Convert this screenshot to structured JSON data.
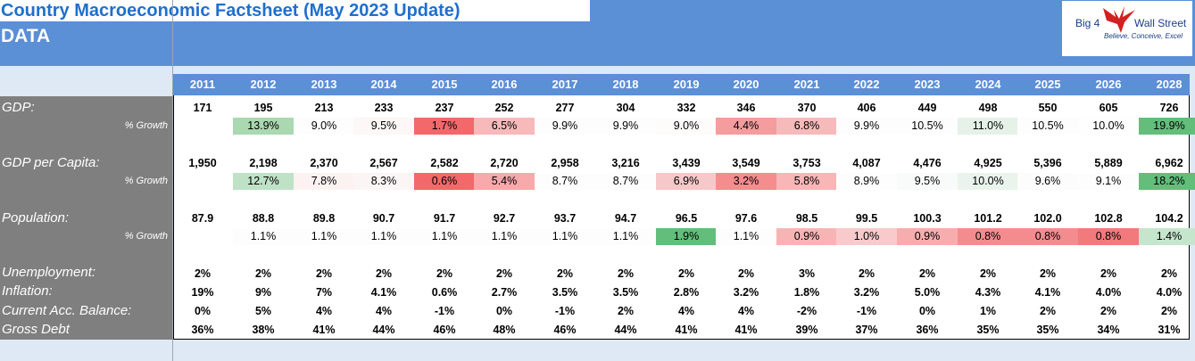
{
  "header": {
    "title": "Country Macroeconomic Factsheet (May 2023 Update)",
    "subtitle": "DATA",
    "logo_left": "Big 4",
    "logo_right": "Wall Street",
    "logo_tagline": "Believe, Conceive, Excel"
  },
  "years": [
    "2011",
    "2012",
    "2013",
    "2014",
    "2015",
    "2016",
    "2017",
    "2018",
    "2019",
    "2020",
    "2021",
    "2022",
    "2023",
    "2024",
    "2025",
    "2026",
    "2028"
  ],
  "labels": {
    "gdp": "GDP:",
    "gdp_pc": "GDP per Capita:",
    "population": "Population:",
    "growth": "% Growth",
    "unemployment": "Unemployment:",
    "inflation": "Inflation:",
    "current_account": "Current Acc. Balance:",
    "gross_debt": "Gross Debt"
  },
  "rows": {
    "gdp": [
      "171",
      "195",
      "213",
      "233",
      "237",
      "252",
      "277",
      "304",
      "332",
      "346",
      "370",
      "406",
      "449",
      "498",
      "550",
      "605",
      "726"
    ],
    "gdp_growth": [
      "",
      "13.9%",
      "9.0%",
      "9.5%",
      "1.7%",
      "6.5%",
      "9.9%",
      "9.9%",
      "9.0%",
      "4.4%",
      "6.8%",
      "9.9%",
      "10.5%",
      "11.0%",
      "10.5%",
      "10.0%",
      "19.9%"
    ],
    "gdp_pc": [
      "1,950",
      "2,198",
      "2,370",
      "2,567",
      "2,582",
      "2,720",
      "2,958",
      "3,216",
      "3,439",
      "3,549",
      "3,753",
      "4,087",
      "4,476",
      "4,925",
      "5,396",
      "5,889",
      "6,962"
    ],
    "gdp_pc_growth": [
      "",
      "12.7%",
      "7.8%",
      "8.3%",
      "0.6%",
      "5.4%",
      "8.7%",
      "8.7%",
      "6.9%",
      "3.2%",
      "5.8%",
      "8.9%",
      "9.5%",
      "10.0%",
      "9.6%",
      "9.1%",
      "18.2%"
    ],
    "population": [
      "87.9",
      "88.8",
      "89.8",
      "90.7",
      "91.7",
      "92.7",
      "93.7",
      "94.7",
      "96.5",
      "97.6",
      "98.5",
      "99.5",
      "100.3",
      "101.2",
      "102.0",
      "102.8",
      "104.2"
    ],
    "population_growth": [
      "",
      "1.1%",
      "1.1%",
      "1.1%",
      "1.1%",
      "1.1%",
      "1.1%",
      "1.1%",
      "1.9%",
      "1.1%",
      "0.9%",
      "1.0%",
      "0.9%",
      "0.8%",
      "0.8%",
      "0.8%",
      "1.4%"
    ],
    "unemployment": [
      "2%",
      "2%",
      "2%",
      "2%",
      "2%",
      "2%",
      "2%",
      "2%",
      "2%",
      "2%",
      "3%",
      "2%",
      "2%",
      "2%",
      "2%",
      "2%",
      "2%"
    ],
    "inflation": [
      "19%",
      "9%",
      "7%",
      "4.1%",
      "0.6%",
      "2.7%",
      "3.5%",
      "3.5%",
      "2.8%",
      "3.2%",
      "1.8%",
      "3.2%",
      "5.0%",
      "4.3%",
      "4.1%",
      "4.0%",
      "4.0%"
    ],
    "current_account": [
      "0%",
      "5%",
      "4%",
      "4%",
      "-1%",
      "0%",
      "-1%",
      "2%",
      "4%",
      "4%",
      "-2%",
      "-1%",
      "0%",
      "1%",
      "2%",
      "2%",
      "2%"
    ],
    "gross_debt": [
      "36%",
      "38%",
      "41%",
      "44%",
      "46%",
      "48%",
      "46%",
      "44%",
      "41%",
      "41%",
      "39%",
      "37%",
      "36%",
      "35%",
      "35%",
      "34%",
      "31%"
    ]
  },
  "heatmap_colors": {
    "gdp_growth": [
      "",
      "#a9d8b1",
      "#fdfdfd",
      "#fef7f7",
      "#f2686b",
      "#f8b9ba",
      "#fdfdfd",
      "#fdfdfd",
      "#fefbfb",
      "#f59c9e",
      "#f7babb",
      "#fdfdfd",
      "#fcfdfc",
      "#e6f2e8",
      "#fcfdfc",
      "#fdfefd",
      "#63be7b"
    ],
    "gdp_pc_growth": [
      "",
      "#bfe2c7",
      "#fdf2f2",
      "#fbf5f6",
      "#f2686b",
      "#f8a9ab",
      "#fdfdfd",
      "#fdfdfd",
      "#f7c8c9",
      "#f58c8e",
      "#f8b6b7",
      "#fdfdfd",
      "#f8fbf9",
      "#eaf4ec",
      "#fbfcfb",
      "#fdfdfd",
      "#63be7b"
    ],
    "population_growth": [
      "",
      "#fdfdfd",
      "#fdfdfd",
      "#fdfdfd",
      "#fdfdfd",
      "#fdfdfd",
      "#fdfdfd",
      "#fdfdfd",
      "#63be7b",
      "#fdfdfd",
      "#f8b4b5",
      "#f9cacb",
      "#f7adae",
      "#f48c8f",
      "#f48c8f",
      "#f2797c",
      "#c6e5cd"
    ]
  }
}
